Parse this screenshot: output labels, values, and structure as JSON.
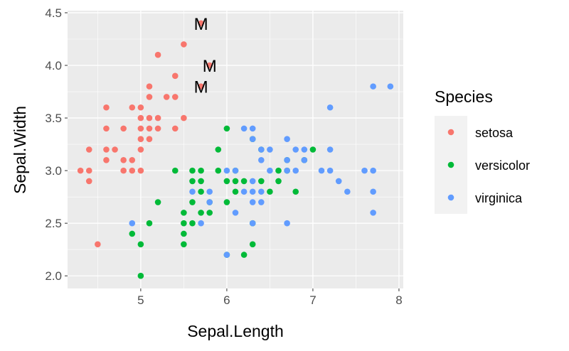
{
  "chart_data": {
    "type": "scatter",
    "xlabel": "Sepal.Length",
    "ylabel": "Sepal.Width",
    "xlim": [
      4.15,
      8.05
    ],
    "ylim": [
      1.88,
      4.52
    ],
    "x_ticks": [
      5,
      6,
      7,
      8
    ],
    "x_tick_labels": [
      "5",
      "6",
      "7",
      "8"
    ],
    "y_ticks": [
      2.0,
      2.5,
      3.0,
      3.5,
      4.0,
      4.5
    ],
    "y_tick_labels": [
      "2.0",
      "2.5",
      "3.0",
      "3.5",
      "4.0",
      "4.5"
    ],
    "grid": true,
    "legend": {
      "title": "Species",
      "position": "right"
    },
    "series": [
      {
        "name": "setosa",
        "color": "#F8766D",
        "points": [
          [
            4.3,
            3.0
          ],
          [
            4.4,
            2.9
          ],
          [
            4.4,
            3.0
          ],
          [
            4.4,
            3.2
          ],
          [
            4.5,
            2.3
          ],
          [
            4.6,
            3.1
          ],
          [
            4.6,
            3.2
          ],
          [
            4.6,
            3.4
          ],
          [
            4.6,
            3.6
          ],
          [
            4.7,
            3.2
          ],
          [
            4.8,
            3.0
          ],
          [
            4.8,
            3.1
          ],
          [
            4.8,
            3.4
          ],
          [
            4.9,
            3.0
          ],
          [
            4.9,
            3.1
          ],
          [
            4.9,
            3.6
          ],
          [
            5.0,
            3.0
          ],
          [
            5.0,
            3.2
          ],
          [
            5.0,
            3.3
          ],
          [
            5.0,
            3.4
          ],
          [
            5.0,
            3.5
          ],
          [
            5.0,
            3.6
          ],
          [
            5.1,
            3.3
          ],
          [
            5.1,
            3.4
          ],
          [
            5.1,
            3.5
          ],
          [
            5.1,
            3.7
          ],
          [
            5.1,
            3.8
          ],
          [
            5.2,
            3.4
          ],
          [
            5.2,
            3.5
          ],
          [
            5.2,
            4.1
          ],
          [
            5.3,
            3.7
          ],
          [
            5.4,
            3.4
          ],
          [
            5.4,
            3.7
          ],
          [
            5.4,
            3.9
          ],
          [
            5.5,
            3.5
          ],
          [
            5.5,
            4.2
          ],
          [
            5.7,
            3.8
          ],
          [
            5.7,
            4.4
          ],
          [
            5.8,
            4.0
          ]
        ]
      },
      {
        "name": "versicolor",
        "color": "#00BA38",
        "points": [
          [
            4.9,
            2.4
          ],
          [
            5.0,
            2.0
          ],
          [
            5.0,
            2.3
          ],
          [
            5.1,
            2.5
          ],
          [
            5.2,
            2.7
          ],
          [
            5.4,
            3.0
          ],
          [
            5.5,
            2.3
          ],
          [
            5.5,
            2.4
          ],
          [
            5.5,
            2.5
          ],
          [
            5.5,
            2.6
          ],
          [
            5.6,
            2.5
          ],
          [
            5.6,
            2.7
          ],
          [
            5.6,
            2.9
          ],
          [
            5.6,
            3.0
          ],
          [
            5.7,
            2.6
          ],
          [
            5.7,
            2.8
          ],
          [
            5.7,
            2.9
          ],
          [
            5.7,
            3.0
          ],
          [
            5.8,
            2.6
          ],
          [
            5.8,
            2.7
          ],
          [
            5.9,
            3.0
          ],
          [
            5.9,
            3.2
          ],
          [
            6.0,
            2.2
          ],
          [
            6.0,
            2.7
          ],
          [
            6.0,
            2.9
          ],
          [
            6.0,
            3.4
          ],
          [
            6.1,
            2.8
          ],
          [
            6.1,
            2.9
          ],
          [
            6.1,
            3.0
          ],
          [
            6.2,
            2.2
          ],
          [
            6.2,
            2.9
          ],
          [
            6.3,
            2.3
          ],
          [
            6.3,
            2.5
          ],
          [
            6.3,
            3.3
          ],
          [
            6.4,
            2.9
          ],
          [
            6.4,
            3.2
          ],
          [
            6.5,
            2.8
          ],
          [
            6.6,
            2.9
          ],
          [
            6.6,
            3.0
          ],
          [
            6.7,
            3.0
          ],
          [
            6.7,
            3.1
          ],
          [
            6.8,
            2.8
          ],
          [
            6.9,
            3.1
          ],
          [
            7.0,
            3.2
          ]
        ]
      },
      {
        "name": "virginica",
        "color": "#619CFF",
        "points": [
          [
            4.9,
            2.5
          ],
          [
            5.6,
            2.8
          ],
          [
            5.7,
            2.5
          ],
          [
            5.8,
            2.7
          ],
          [
            5.8,
            2.8
          ],
          [
            6.0,
            2.2
          ],
          [
            6.0,
            3.0
          ],
          [
            6.1,
            2.6
          ],
          [
            6.1,
            3.0
          ],
          [
            6.2,
            2.8
          ],
          [
            6.2,
            3.4
          ],
          [
            6.3,
            2.5
          ],
          [
            6.3,
            2.7
          ],
          [
            6.3,
            2.8
          ],
          [
            6.3,
            2.9
          ],
          [
            6.3,
            3.3
          ],
          [
            6.3,
            3.4
          ],
          [
            6.4,
            2.7
          ],
          [
            6.4,
            2.8
          ],
          [
            6.4,
            3.1
          ],
          [
            6.4,
            3.2
          ],
          [
            6.5,
            3.0
          ],
          [
            6.5,
            3.2
          ],
          [
            6.7,
            2.5
          ],
          [
            6.7,
            3.0
          ],
          [
            6.7,
            3.1
          ],
          [
            6.7,
            3.3
          ],
          [
            6.8,
            3.0
          ],
          [
            6.8,
            3.2
          ],
          [
            6.9,
            3.1
          ],
          [
            6.9,
            3.2
          ],
          [
            7.1,
            3.0
          ],
          [
            7.2,
            3.0
          ],
          [
            7.2,
            3.2
          ],
          [
            7.2,
            3.6
          ],
          [
            7.3,
            2.9
          ],
          [
            7.4,
            2.8
          ],
          [
            7.6,
            3.0
          ],
          [
            7.7,
            2.6
          ],
          [
            7.7,
            2.8
          ],
          [
            7.7,
            3.0
          ],
          [
            7.7,
            3.8
          ],
          [
            7.9,
            3.8
          ]
        ]
      }
    ],
    "annotations": [
      {
        "text": "M",
        "x": 5.7,
        "y": 4.4
      },
      {
        "text": "M",
        "x": 5.8,
        "y": 4.0
      },
      {
        "text": "M",
        "x": 5.7,
        "y": 3.8
      }
    ]
  }
}
